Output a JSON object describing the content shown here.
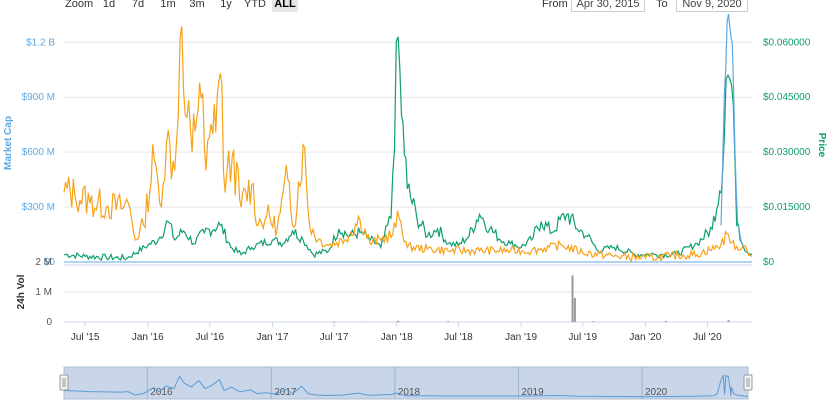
{
  "toolbar": {
    "zoom_label": "Zoom",
    "zoom_buttons": [
      "1d",
      "7d",
      "1m",
      "3m",
      "1y",
      "YTD",
      "ALL"
    ],
    "active_zoom": "ALL",
    "from_label": "From",
    "from_value": "Apr 30, 2015",
    "to_label": "To",
    "to_value": "Nov 9, 2020"
  },
  "colors": {
    "market_cap": "#f7a21b",
    "market_cap_axis": "#5ea8e0",
    "price": "#0f9e6e",
    "volume": "#999999",
    "navigator_fill": "#c9d6ea",
    "navigator_line": "#5b9bd5"
  },
  "chart_data": {
    "type": "line",
    "x_range": [
      "2015-04-30",
      "2020-11-09"
    ],
    "x_tick_labels": [
      "Jul '15",
      "Jan '16",
      "Jul '16",
      "Jan '17",
      "Jul '17",
      "Jan '18",
      "Jul '18",
      "Jan '19",
      "Jul '19",
      "Jan '20",
      "Jul '20"
    ],
    "y_left": {
      "label": "Market Cap",
      "ticks": [
        "$0",
        "$300 M",
        "$600 M",
        "$900 M",
        "$1.2 B"
      ],
      "range": [
        0,
        1300000000
      ]
    },
    "y_right": {
      "label": "Price",
      "ticks": [
        "$0",
        "$0.015000",
        "$0.030000",
        "$0.045000",
        "$0.060000"
      ],
      "range": [
        0,
        0.065
      ]
    },
    "volume_axis": {
      "label": "24h Vol",
      "ticks": [
        "0",
        "1 M",
        "2 M"
      ],
      "range": [
        0,
        2000000
      ]
    },
    "series": [
      {
        "axis": "left",
        "points": [
          [
            "2015-04-30",
            380000000
          ],
          [
            "2015-06-01",
            360000000
          ],
          [
            "2015-07-15",
            320000000
          ],
          [
            "2015-09-01",
            300000000
          ],
          [
            "2015-10-15",
            290000000
          ],
          [
            "2015-11-05",
            320000000
          ],
          [
            "2015-11-25",
            120000000
          ],
          [
            "2015-12-20",
            200000000
          ],
          [
            "2016-01-20",
            560000000
          ],
          [
            "2016-02-05",
            320000000
          ],
          [
            "2016-02-25",
            650000000
          ],
          [
            "2016-03-20",
            500000000
          ],
          [
            "2016-04-05",
            1230000000
          ],
          [
            "2016-04-20",
            800000000
          ],
          [
            "2016-05-10",
            600000000
          ],
          [
            "2016-06-01",
            980000000
          ],
          [
            "2016-06-20",
            500000000
          ],
          [
            "2016-07-10",
            700000000
          ],
          [
            "2016-08-01",
            1030000000
          ],
          [
            "2016-08-15",
            380000000
          ],
          [
            "2016-09-05",
            580000000
          ],
          [
            "2016-10-01",
            300000000
          ],
          [
            "2016-11-01",
            420000000
          ],
          [
            "2016-11-20",
            200000000
          ],
          [
            "2016-12-15",
            250000000
          ],
          [
            "2017-01-15",
            180000000
          ],
          [
            "2017-02-15",
            450000000
          ],
          [
            "2017-03-05",
            190000000
          ],
          [
            "2017-04-01",
            640000000
          ],
          [
            "2017-04-20",
            200000000
          ],
          [
            "2017-05-15",
            120000000
          ],
          [
            "2017-06-15",
            90000000
          ],
          [
            "2017-08-01",
            120000000
          ],
          [
            "2017-09-15",
            230000000
          ],
          [
            "2017-10-15",
            100000000
          ],
          [
            "2017-11-15",
            120000000
          ],
          [
            "2017-12-20",
            150000000
          ],
          [
            "2018-01-08",
            240000000
          ],
          [
            "2018-02-01",
            80000000
          ],
          [
            "2018-04-01",
            70000000
          ],
          [
            "2018-06-01",
            60000000
          ],
          [
            "2018-09-01",
            60000000
          ],
          [
            "2018-12-01",
            60000000
          ],
          [
            "2019-02-01",
            60000000
          ],
          [
            "2019-05-01",
            90000000
          ],
          [
            "2019-07-01",
            50000000
          ],
          [
            "2019-10-01",
            30000000
          ],
          [
            "2020-01-01",
            20000000
          ],
          [
            "2020-03-15",
            30000000
          ],
          [
            "2020-06-01",
            40000000
          ],
          [
            "2020-08-01",
            80000000
          ],
          [
            "2020-09-01",
            150000000
          ],
          [
            "2020-09-20",
            70000000
          ],
          [
            "2020-10-15",
            90000000
          ],
          [
            "2020-11-09",
            30000000
          ]
        ]
      },
      {
        "axis": "right",
        "points": [
          [
            "2015-04-30",
            0.002
          ],
          [
            "2015-07-01",
            0.0015
          ],
          [
            "2015-09-01",
            0.0012
          ],
          [
            "2015-11-01",
            0.001
          ],
          [
            "2016-01-01",
            0.0045
          ],
          [
            "2016-02-01",
            0.006
          ],
          [
            "2016-03-01",
            0.011
          ],
          [
            "2016-03-20",
            0.006
          ],
          [
            "2016-04-15",
            0.0085
          ],
          [
            "2016-05-15",
            0.005
          ],
          [
            "2016-06-15",
            0.008
          ],
          [
            "2016-08-01",
            0.01
          ],
          [
            "2016-09-01",
            0.004
          ],
          [
            "2016-10-01",
            0.002
          ],
          [
            "2016-11-01",
            0.004
          ],
          [
            "2017-01-01",
            0.006
          ],
          [
            "2017-02-01",
            0.005
          ],
          [
            "2017-03-01",
            0.0085
          ],
          [
            "2017-04-01",
            0.006
          ],
          [
            "2017-05-01",
            0.002
          ],
          [
            "2017-06-15",
            0.003
          ],
          [
            "2017-07-15",
            0.009
          ],
          [
            "2017-08-15",
            0.007
          ],
          [
            "2017-09-15",
            0.008
          ],
          [
            "2017-10-15",
            0.006
          ],
          [
            "2017-11-15",
            0.004
          ],
          [
            "2017-12-15",
            0.012
          ],
          [
            "2018-01-05",
            0.0615
          ],
          [
            "2018-01-15",
            0.04
          ],
          [
            "2018-02-01",
            0.02
          ],
          [
            "2018-03-01",
            0.012
          ],
          [
            "2018-04-01",
            0.007
          ],
          [
            "2018-05-01",
            0.009
          ],
          [
            "2018-06-01",
            0.005
          ],
          [
            "2018-07-01",
            0.0045
          ],
          [
            "2018-08-01",
            0.007
          ],
          [
            "2018-09-01",
            0.013
          ],
          [
            "2018-10-01",
            0.009
          ],
          [
            "2018-11-01",
            0.006
          ],
          [
            "2018-12-01",
            0.005
          ],
          [
            "2019-01-01",
            0.004
          ],
          [
            "2019-02-01",
            0.006
          ],
          [
            "2019-03-01",
            0.011
          ],
          [
            "2019-04-01",
            0.008
          ],
          [
            "2019-05-15",
            0.013
          ],
          [
            "2019-06-15",
            0.009
          ],
          [
            "2019-07-15",
            0.007
          ],
          [
            "2019-08-15",
            0.003
          ],
          [
            "2019-10-01",
            0.004
          ],
          [
            "2019-12-01",
            0.002
          ],
          [
            "2020-02-01",
            0.002
          ],
          [
            "2020-04-01",
            0.002
          ],
          [
            "2020-06-01",
            0.005
          ],
          [
            "2020-07-15",
            0.009
          ],
          [
            "2020-08-15",
            0.025
          ],
          [
            "2020-08-25",
            0.05
          ],
          [
            "2020-09-05",
            0.05
          ],
          [
            "2020-09-15",
            0.043
          ],
          [
            "2020-09-25",
            0.01
          ],
          [
            "2020-10-15",
            0.004
          ],
          [
            "2020-11-09",
            0.002
          ]
        ]
      },
      {
        "axis": "left",
        "overlay": "2020 spike",
        "points": [
          [
            "2020-08-10",
            200000000
          ],
          [
            "2020-08-20",
            920000000
          ],
          [
            "2020-08-28",
            1310000000
          ],
          [
            "2020-09-05",
            1280000000
          ],
          [
            "2020-09-12",
            1200000000
          ],
          [
            "2020-09-20",
            600000000
          ],
          [
            "2020-09-28",
            200000000
          ],
          [
            "2020-10-10",
            100000000
          ]
        ]
      },
      {
        "axis": "volume",
        "type": "bar",
        "points": [
          [
            "2017-07-01",
            20000
          ],
          [
            "2017-10-01",
            15000
          ],
          [
            "2018-01-05",
            40000
          ],
          [
            "2018-06-01",
            30000
          ],
          [
            "2019-06-01",
            1550000
          ],
          [
            "2019-06-08",
            800000
          ],
          [
            "2019-08-01",
            25000
          ],
          [
            "2020-03-01",
            30000
          ],
          [
            "2020-09-01",
            60000
          ]
        ]
      }
    ]
  },
  "navigator": {
    "year_labels": [
      "2016",
      "2017",
      "2018",
      "2019",
      "2020"
    ]
  }
}
